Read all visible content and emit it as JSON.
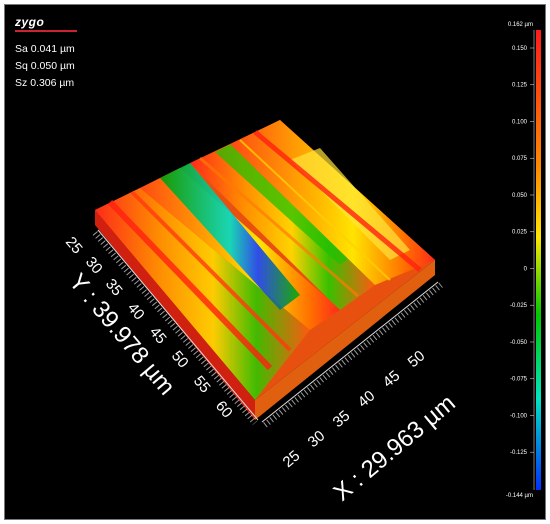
{
  "app": {
    "logo_text": "zygo"
  },
  "stats": [
    {
      "label": "Sa",
      "value": "0.041 µm"
    },
    {
      "label": "Sq",
      "value": "0.050 µm"
    },
    {
      "label": "Sz",
      "value": "0.306 µm"
    }
  ],
  "axes": {
    "y_title": "Y : 39.978 µm",
    "x_title": "X : 29.963 µm",
    "y_ticks": [
      "25",
      "30",
      "35",
      "40",
      "45",
      "50",
      "55",
      "60"
    ],
    "x_ticks": [
      "25",
      "30",
      "35",
      "40",
      "45",
      "50"
    ]
  },
  "colorbar": {
    "max_label": "0.162 µm",
    "min_label": "-0.144 µm",
    "ticks": [
      "0.150",
      "0.125",
      "0.100",
      "0.075",
      "0.050",
      "0.025",
      "0",
      "-0.025",
      "-0.050",
      "-0.075",
      "-0.100",
      "-0.125"
    ],
    "colors": [
      "#ff1a1a",
      "#ff8a00",
      "#ffe600",
      "#00c800",
      "#00e5c0",
      "#0030ff"
    ]
  }
}
